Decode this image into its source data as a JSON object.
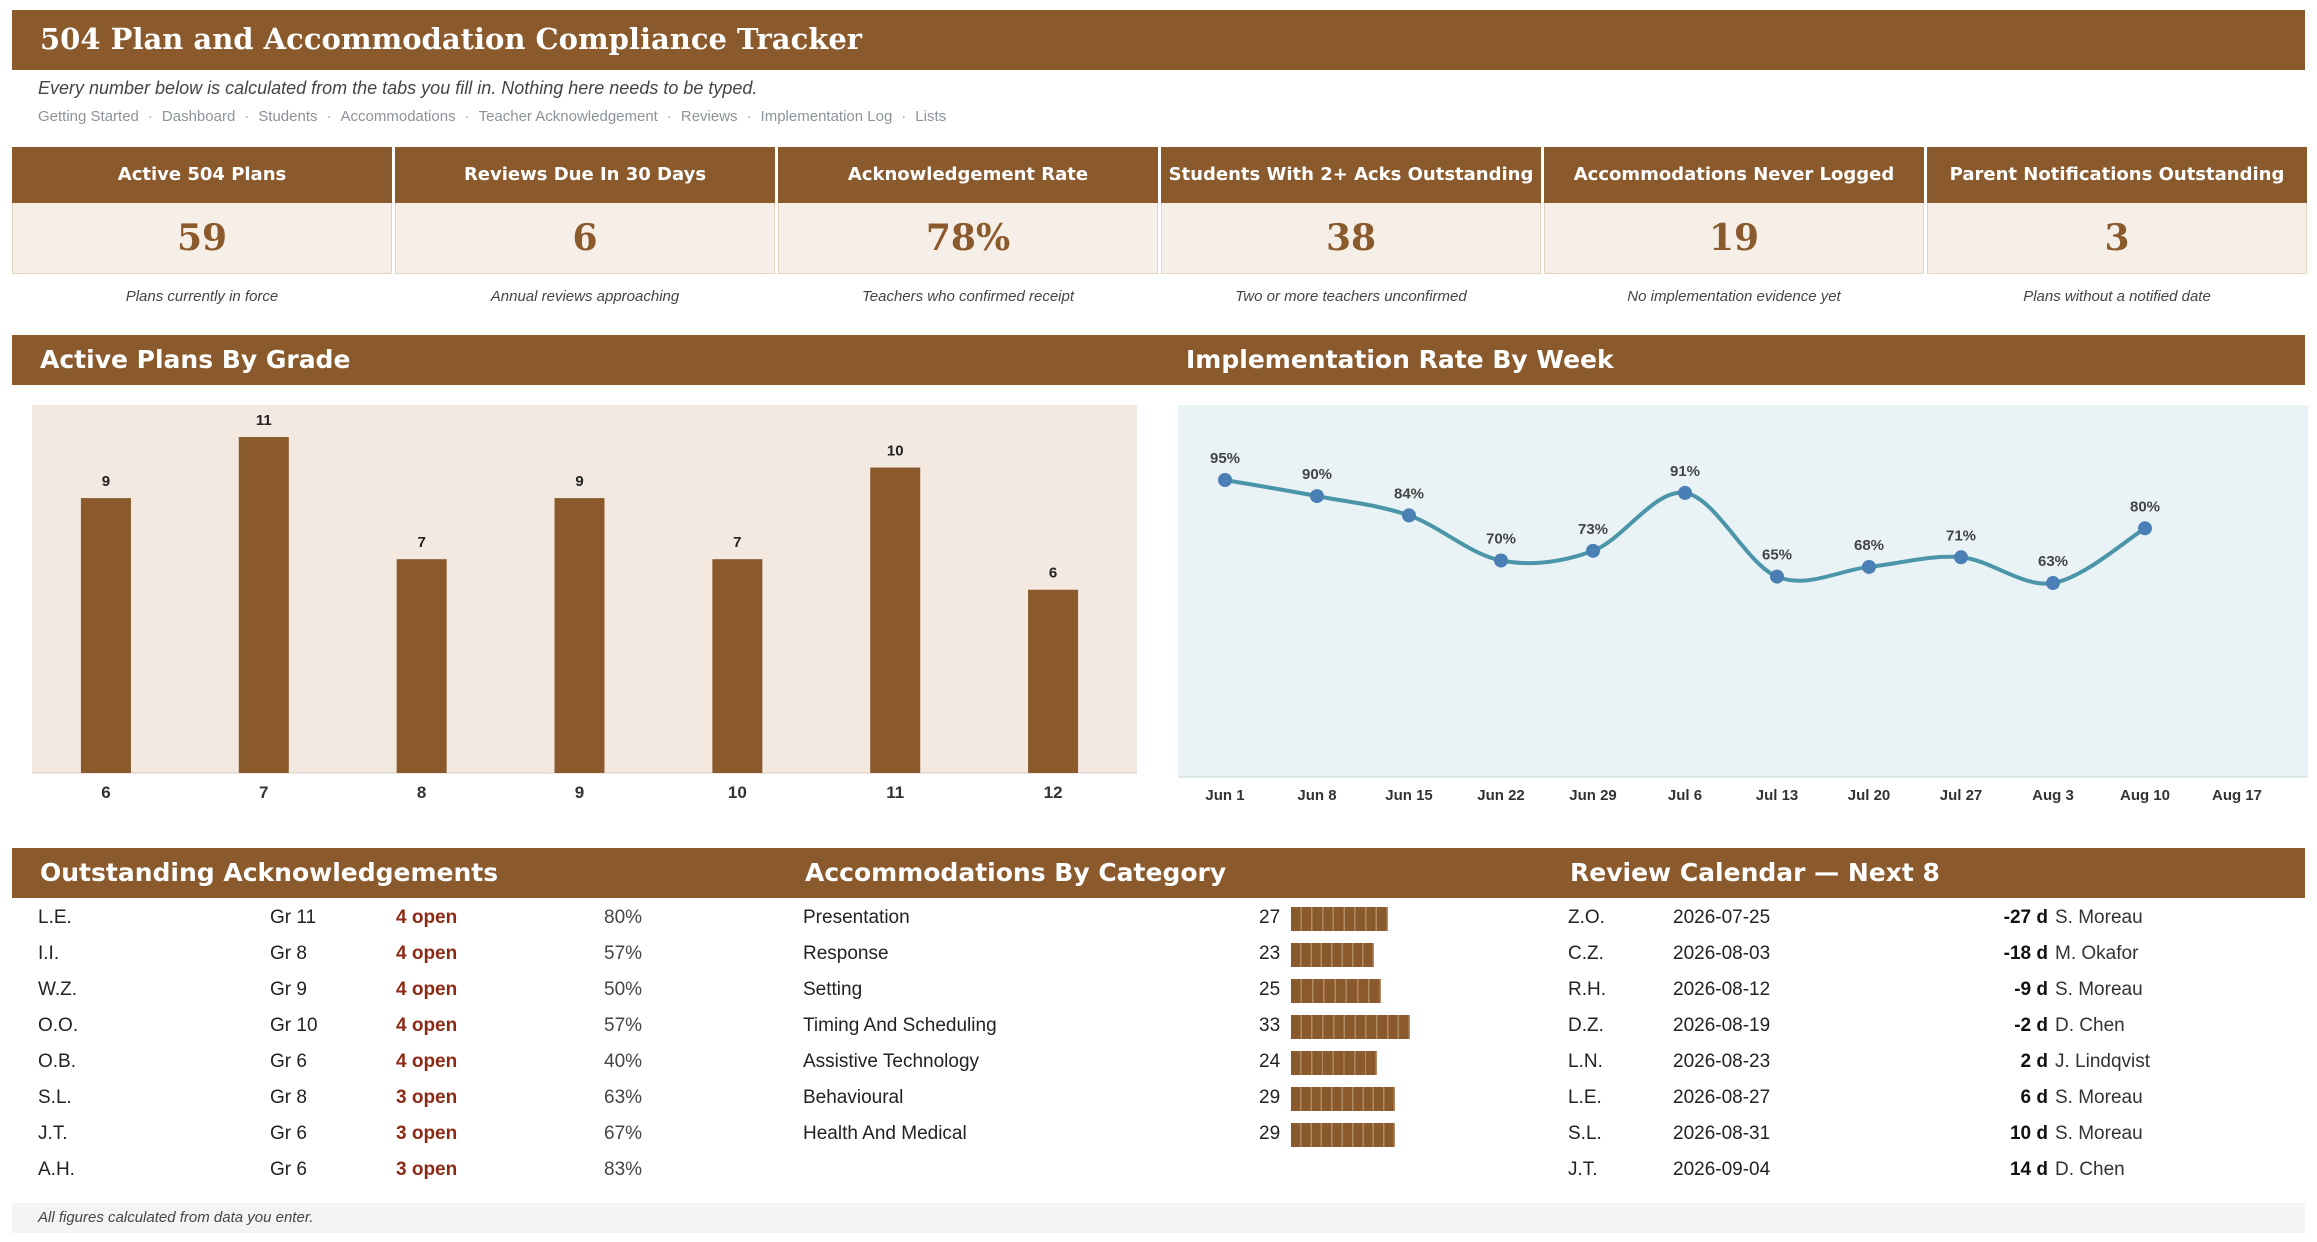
{
  "title": "504 Plan and Accommodation Compliance Tracker",
  "subtitle": "Every number below is calculated from the tabs you fill in. Nothing here needs to be typed.",
  "nav": [
    "Getting Started",
    "Dashboard",
    "Students",
    "Accommodations",
    "Teacher Acknowledgement",
    "Reviews",
    "Implementation Log",
    "Lists"
  ],
  "nav_separator": "·",
  "kpis": [
    {
      "label": "Active 504 Plans",
      "value": "59",
      "caption": "Plans currently in force"
    },
    {
      "label": "Reviews Due In 30 Days",
      "value": "6",
      "caption": "Annual reviews approaching"
    },
    {
      "label": "Acknowledgement Rate",
      "value": "78%",
      "caption": "Teachers who confirmed receipt"
    },
    {
      "label": "Students With 2+ Acks Outstanding",
      "value": "38",
      "caption": "Two or more teachers unconfirmed"
    },
    {
      "label": "Accommodations Never Logged",
      "value": "19",
      "caption": "No implementation evidence yet"
    },
    {
      "label": "Parent Notifications Outstanding",
      "value": "3",
      "caption": "Plans without a notified date"
    }
  ],
  "sections": {
    "plans_by_grade": "Active Plans By Grade",
    "implementation_rate": "Implementation Rate By Week",
    "outstanding_acks": "Outstanding Acknowledgements",
    "accommodations_by_category": "Accommodations By Category",
    "review_calendar": "Review Calendar — Next 8"
  },
  "chart_data": [
    {
      "type": "bar",
      "title": "Active Plans By Grade",
      "categories": [
        "6",
        "7",
        "8",
        "9",
        "10",
        "11",
        "12"
      ],
      "values": [
        9,
        11,
        7,
        9,
        7,
        10,
        6
      ],
      "ylim": [
        0,
        11
      ],
      "grid": false,
      "bar_color": "#8a5a2d",
      "background": "#f4e9e1"
    },
    {
      "type": "line",
      "title": "Implementation Rate By Week",
      "categories": [
        "Jun 1",
        "Jun 8",
        "Jun 15",
        "Jun 22",
        "Jun 29",
        "Jul 6",
        "Jul 13",
        "Jul 20",
        "Jul 27",
        "Aug 3",
        "Aug 10",
        "Aug 17"
      ],
      "values": [
        95,
        90,
        84,
        70,
        73,
        91,
        65,
        68,
        71,
        63,
        80,
        null
      ],
      "labels": [
        "95%",
        "90%",
        "84%",
        "70%",
        "73%",
        "91%",
        "65%",
        "68%",
        "71%",
        "63%",
        "80%",
        ""
      ],
      "ylim": [
        0,
        100
      ],
      "grid": false,
      "line_color": "#4a95a8",
      "point_color": "#4a7fb5",
      "background": "#e9f2f4"
    }
  ],
  "outstanding_acks": [
    {
      "student": "L.E.",
      "grade": "Gr 11",
      "open": "4 open",
      "pct": "80%"
    },
    {
      "student": "I.I.",
      "grade": "Gr 8",
      "open": "4 open",
      "pct": "57%"
    },
    {
      "student": "W.Z.",
      "grade": "Gr 9",
      "open": "4 open",
      "pct": "50%"
    },
    {
      "student": "O.O.",
      "grade": "Gr 10",
      "open": "4 open",
      "pct": "57%"
    },
    {
      "student": "O.B.",
      "grade": "Gr 6",
      "open": "4 open",
      "pct": "40%"
    },
    {
      "student": "S.L.",
      "grade": "Gr 8",
      "open": "3 open",
      "pct": "63%"
    },
    {
      "student": "J.T.",
      "grade": "Gr 6",
      "open": "3 open",
      "pct": "67%"
    },
    {
      "student": "A.H.",
      "grade": "Gr 6",
      "open": "3 open",
      "pct": "83%"
    }
  ],
  "categories": [
    {
      "name": "Presentation",
      "count": 27
    },
    {
      "name": "Response",
      "count": 23
    },
    {
      "name": "Setting",
      "count": 25
    },
    {
      "name": "Timing And Scheduling",
      "count": 33
    },
    {
      "name": "Assistive Technology",
      "count": 24
    },
    {
      "name": "Behavioural",
      "count": 29
    },
    {
      "name": "Health And Medical",
      "count": 29
    }
  ],
  "reviews": [
    {
      "student": "Z.O.",
      "date": "2026-07-25",
      "days": "-27 d",
      "teacher": "S. Moreau"
    },
    {
      "student": "C.Z.",
      "date": "2026-08-03",
      "days": "-18 d",
      "teacher": "M. Okafor"
    },
    {
      "student": "R.H.",
      "date": "2026-08-12",
      "days": "-9 d",
      "teacher": "S. Moreau"
    },
    {
      "student": "D.Z.",
      "date": "2026-08-19",
      "days": "-2 d",
      "teacher": "D. Chen"
    },
    {
      "student": "L.N.",
      "date": "2026-08-23",
      "days": "2 d",
      "teacher": "J. Lindqvist"
    },
    {
      "student": "L.E.",
      "date": "2026-08-27",
      "days": "6 d",
      "teacher": "S. Moreau"
    },
    {
      "student": "S.L.",
      "date": "2026-08-31",
      "days": "10 d",
      "teacher": "S. Moreau"
    },
    {
      "student": "J.T.",
      "date": "2026-09-04",
      "days": "14 d",
      "teacher": "D. Chen"
    }
  ],
  "footer": "All figures calculated from data you enter.",
  "colors": {
    "brown": "#8a5a2d",
    "alert": "#8b2a14",
    "line": "#4a95a8"
  }
}
